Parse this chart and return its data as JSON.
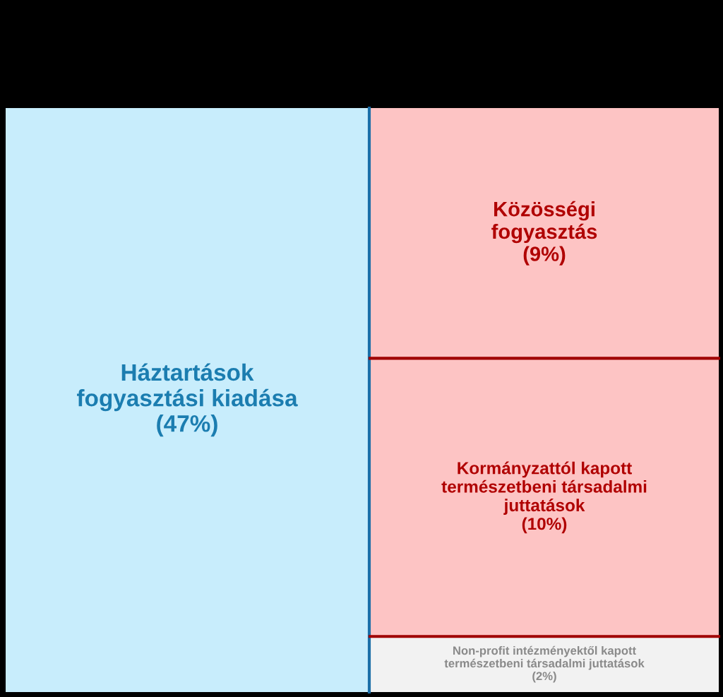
{
  "chart_data": {
    "type": "other",
    "categories": [
      "Háztartások\nfogyasztási kiadása",
      "Közösségi\nfogyasztás",
      "Kormányzattól kapott\ntermészetbeni társadalmi\njuttatások",
      "Non-profit intézményektől kapott\ntermészetbeni társadalmi juttatások"
    ],
    "values": [
      47,
      9,
      10,
      2
    ],
    "value_labels": [
      "(47%)",
      "(9%)",
      "(10%)",
      "(2%)"
    ],
    "colors": [
      "#c8edfc",
      "#fdc4c4",
      "#fdc4c4",
      "#f2f2f2"
    ]
  }
}
